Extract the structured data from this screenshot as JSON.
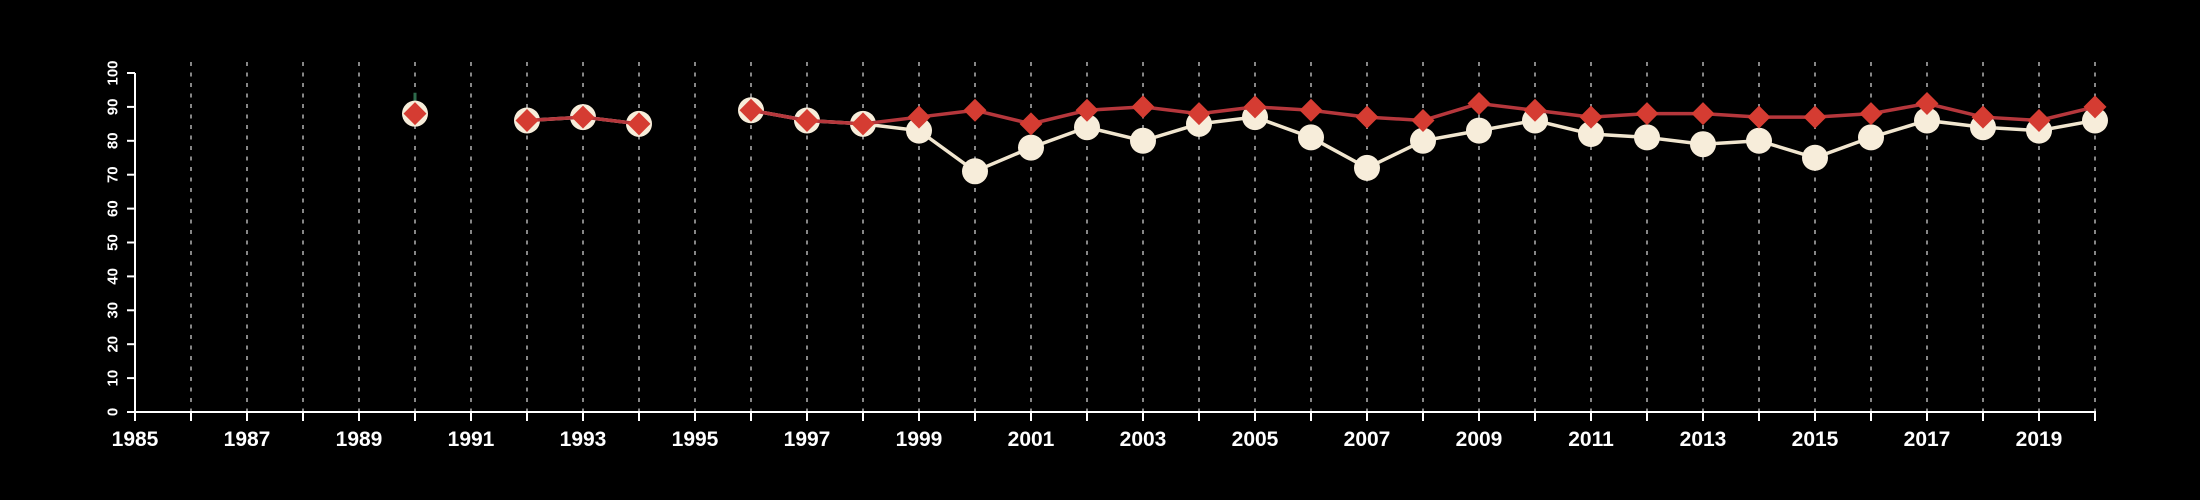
{
  "chart_data": {
    "type": "line",
    "title": "",
    "xlabel": "",
    "ylabel": "",
    "background_color": "#000000",
    "axis_color": "#ffffff",
    "x_axis": {
      "min": 1985,
      "max": 2020,
      "tick_every_years": 1,
      "tick_labels": [
        "1985",
        "1987",
        "1989",
        "1991",
        "1993",
        "1995",
        "1997",
        "1999",
        "2001",
        "2003",
        "2005",
        "2007",
        "2009",
        "2011",
        "2013",
        "2015",
        "2017",
        "2019"
      ],
      "label_years": [
        1985,
        1987,
        1989,
        1991,
        1993,
        1995,
        1997,
        1999,
        2001,
        2003,
        2005,
        2007,
        2009,
        2011,
        2013,
        2015,
        2017,
        2019
      ]
    },
    "y_axis": {
      "min": 0,
      "max": 100,
      "tick_step": 10,
      "tick_labels": [
        "0",
        "10",
        "20",
        "30",
        "40",
        "50",
        "60",
        "70",
        "80",
        "90",
        "100"
      ],
      "label_rotation_deg": -90
    },
    "grid": {
      "visible": true,
      "orientation": "vertical",
      "line_style": "dashed",
      "color": "#868686",
      "first_year": 1986,
      "last_year": 2020
    },
    "legend": {
      "visible": false
    },
    "series": [
      {
        "name": "cream-circle-series",
        "marker": "circle",
        "marker_color": "#f7edda",
        "line_color": "#f1e6cf",
        "points": [
          [
            1990,
            88
          ],
          [
            1992,
            86
          ],
          [
            1993,
            87
          ],
          [
            1994,
            85
          ],
          [
            1996,
            89
          ],
          [
            1997,
            86
          ],
          [
            1998,
            85
          ],
          [
            1999,
            83
          ],
          [
            2000,
            71
          ],
          [
            2001,
            78
          ],
          [
            2002,
            84
          ],
          [
            2003,
            80
          ],
          [
            2004,
            85
          ],
          [
            2005,
            87
          ],
          [
            2006,
            81
          ],
          [
            2007,
            72
          ],
          [
            2008,
            80
          ],
          [
            2009,
            83
          ],
          [
            2010,
            86
          ],
          [
            2011,
            82
          ],
          [
            2012,
            81
          ],
          [
            2013,
            79
          ],
          [
            2014,
            80
          ],
          [
            2015,
            75
          ],
          [
            2016,
            81
          ],
          [
            2017,
            86
          ],
          [
            2018,
            84
          ],
          [
            2019,
            83
          ],
          [
            2020,
            86
          ]
        ]
      },
      {
        "name": "red-diamond-series",
        "marker": "diamond",
        "marker_color": "#d53c32",
        "line_color": "#b6373c",
        "points": [
          [
            1990,
            88
          ],
          [
            1992,
            86
          ],
          [
            1993,
            87
          ],
          [
            1994,
            85
          ],
          [
            1996,
            89
          ],
          [
            1997,
            86
          ],
          [
            1998,
            85
          ],
          [
            1999,
            87
          ],
          [
            2000,
            89
          ],
          [
            2001,
            85
          ],
          [
            2002,
            89
          ],
          [
            2003,
            90
          ],
          [
            2004,
            88
          ],
          [
            2005,
            90
          ],
          [
            2006,
            89
          ],
          [
            2007,
            87
          ],
          [
            2008,
            86
          ],
          [
            2009,
            91
          ],
          [
            2010,
            89
          ],
          [
            2011,
            87
          ],
          [
            2012,
            88
          ],
          [
            2013,
            88
          ],
          [
            2014,
            87
          ],
          [
            2015,
            87
          ],
          [
            2016,
            88
          ],
          [
            2017,
            91
          ],
          [
            2018,
            87
          ],
          [
            2019,
            86
          ],
          [
            2020,
            90
          ]
        ]
      }
    ],
    "annotations": [
      {
        "type": "small-green-tick",
        "year": 1990,
        "near_value": 93,
        "color": "#2e6b4c"
      }
    ]
  }
}
